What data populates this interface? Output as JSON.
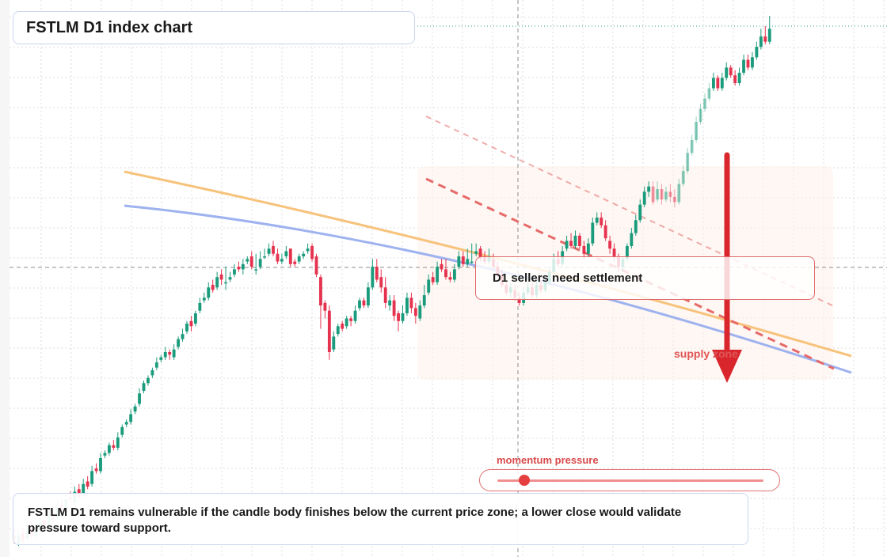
{
  "title": "FSTLM D1 index chart",
  "callout": "D1 sellers need settlement",
  "zone_label": "supply zone",
  "momentum_label": "momentum pressure",
  "momentum_level": 0.1,
  "footer_text": "FSTLM D1 remains vulnerable if the candle body finishes below the current price zone; a lower close would validate pressure toward support.",
  "colors": {
    "bull": "#1a9b7c",
    "bear": "#e5334f",
    "ma_fast": "#f7c37c",
    "ma_slow": "#9db2ef",
    "resistance": "#e66a6a",
    "arrow": "#d9262d",
    "zone_fill": "#fdf1ea",
    "grid": "#dcdcdc"
  },
  "chart_data": {
    "type": "candlestick",
    "title": "FSTLM D1 index chart",
    "grid": true,
    "crosshair": true,
    "candles": [
      [
        99,
        98,
        102,
        96
      ],
      [
        96,
        99,
        101,
        95
      ],
      [
        100,
        97,
        102,
        96
      ],
      [
        98,
        101,
        103,
        97
      ],
      [
        103,
        99,
        104,
        98
      ],
      [
        99,
        102,
        104,
        98
      ],
      [
        101,
        104,
        106,
        100
      ],
      [
        105,
        103,
        107,
        102
      ],
      [
        103,
        107,
        109,
        102
      ],
      [
        108,
        105,
        110,
        104
      ],
      [
        106,
        110,
        112,
        105
      ],
      [
        111,
        109,
        113,
        108
      ],
      [
        109,
        113,
        115,
        108
      ],
      [
        114,
        113,
        116,
        112
      ],
      [
        112,
        116,
        118,
        111
      ],
      [
        117,
        114,
        119,
        113
      ],
      [
        115,
        119,
        121,
        114
      ],
      [
        120,
        118,
        122,
        117
      ],
      [
        119,
        124,
        126,
        118
      ],
      [
        125,
        124,
        127,
        123
      ],
      [
        124,
        129,
        131,
        123
      ],
      [
        130,
        131,
        132,
        129
      ],
      [
        131,
        134,
        135,
        130
      ],
      [
        134,
        133,
        136,
        132
      ],
      [
        133,
        137,
        139,
        132
      ],
      [
        138,
        141,
        142,
        137
      ],
      [
        142,
        143,
        144,
        141
      ],
      [
        143,
        146,
        148,
        142
      ],
      [
        147,
        149,
        150,
        146
      ],
      [
        150,
        154,
        156,
        149
      ],
      [
        155,
        158,
        159,
        154
      ],
      [
        158,
        160,
        161,
        157
      ],
      [
        161,
        163,
        164,
        160
      ],
      [
        164,
        166,
        168,
        163
      ],
      [
        167,
        168,
        169,
        166
      ],
      [
        168,
        170,
        172,
        167
      ],
      [
        170,
        169,
        171,
        167
      ],
      [
        168,
        171,
        173,
        167
      ],
      [
        172,
        175,
        176,
        171
      ],
      [
        175,
        177,
        179,
        174
      ],
      [
        178,
        181,
        182,
        177
      ],
      [
        182,
        180,
        184,
        178
      ],
      [
        181,
        185,
        186,
        180
      ],
      [
        186,
        189,
        191,
        185
      ],
      [
        190,
        191,
        193,
        189
      ],
      [
        191,
        195,
        197,
        190
      ],
      [
        196,
        194,
        198,
        193
      ],
      [
        195,
        199,
        201,
        194
      ],
      [
        200,
        198,
        202,
        196
      ],
      [
        197,
        197,
        203,
        194
      ],
      [
        198,
        199,
        201,
        197
      ],
      [
        200,
        202,
        204,
        199
      ],
      [
        203,
        202,
        205,
        201
      ],
      [
        202,
        204,
        206,
        200
      ],
      [
        205,
        206,
        207,
        204
      ],
      [
        207,
        203,
        209,
        202
      ],
      [
        202,
        202,
        208,
        200
      ],
      [
        203,
        206,
        209,
        202
      ],
      [
        207,
        207,
        210,
        206
      ],
      [
        208,
        210,
        212,
        207
      ],
      [
        211,
        208,
        213,
        207
      ],
      [
        208,
        205,
        210,
        204
      ],
      [
        205,
        206,
        208,
        204
      ],
      [
        207,
        209,
        211,
        206
      ],
      [
        210,
        204,
        210,
        203
      ],
      [
        205,
        204,
        206,
        203
      ],
      [
        205,
        207,
        208,
        204
      ],
      [
        207,
        208,
        209,
        206
      ],
      [
        209,
        210,
        212,
        208
      ],
      [
        211,
        206,
        212,
        205
      ],
      [
        207,
        200,
        208,
        199
      ],
      [
        199,
        188,
        200,
        179
      ],
      [
        189,
        186,
        190,
        183
      ],
      [
        186,
        170,
        188,
        167
      ],
      [
        171,
        176,
        178,
        170
      ],
      [
        177,
        180,
        181,
        176
      ],
      [
        181,
        179,
        182,
        178
      ],
      [
        180,
        183,
        184,
        179
      ],
      [
        183,
        182,
        184,
        180
      ],
      [
        182,
        186,
        188,
        181
      ],
      [
        187,
        190,
        191,
        186
      ],
      [
        190,
        188,
        191,
        187
      ],
      [
        188,
        195,
        197,
        187
      ],
      [
        195,
        203,
        206,
        194
      ],
      [
        203,
        198,
        206,
        197
      ],
      [
        199,
        195,
        202,
        193
      ],
      [
        195,
        189,
        199,
        187
      ],
      [
        188,
        190,
        192,
        186
      ],
      [
        190,
        184,
        192,
        182
      ],
      [
        185,
        182,
        186,
        178
      ],
      [
        182,
        185,
        188,
        181
      ],
      [
        185,
        191,
        193,
        184
      ],
      [
        191,
        187,
        193,
        185
      ],
      [
        187,
        184,
        189,
        181
      ],
      [
        183,
        188,
        190,
        182
      ],
      [
        188,
        192,
        196,
        187
      ],
      [
        193,
        198,
        200,
        192
      ],
      [
        199,
        197,
        201,
        196
      ],
      [
        197,
        203,
        205,
        196
      ],
      [
        204,
        202,
        206,
        201
      ],
      [
        202,
        199,
        206,
        198
      ],
      [
        199,
        198,
        201,
        197
      ],
      [
        198,
        202,
        204,
        197
      ],
      [
        203,
        207,
        209,
        202
      ],
      [
        207,
        204,
        209,
        203
      ],
      [
        204,
        206,
        210,
        203
      ],
      [
        205,
        205,
        212,
        204
      ],
      [
        208,
        209,
        212,
        207
      ],
      [
        210,
        206,
        211,
        205
      ],
      [
        207,
        205,
        209,
        204
      ],
      [
        205,
        207,
        210,
        204
      ],
      [
        206,
        203,
        208,
        202
      ],
      [
        203,
        200,
        205,
        199
      ],
      [
        200,
        196,
        202,
        195
      ],
      [
        196,
        193,
        198,
        192
      ],
      [
        193,
        195,
        197,
        191
      ],
      [
        194,
        191,
        196,
        190
      ],
      [
        191,
        189,
        193,
        188
      ],
      [
        189,
        193,
        195,
        188
      ],
      [
        193,
        195,
        197,
        192
      ],
      [
        195,
        192,
        197,
        191
      ],
      [
        192,
        196,
        198,
        191
      ],
      [
        196,
        194,
        198,
        193
      ],
      [
        194,
        197,
        200,
        193
      ],
      [
        197,
        201,
        203,
        196
      ],
      [
        201,
        206,
        208,
        200
      ],
      [
        206,
        204,
        209,
        203
      ],
      [
        204,
        209,
        211,
        203
      ],
      [
        210,
        213,
        215,
        209
      ],
      [
        213,
        211,
        216,
        210
      ],
      [
        211,
        215,
        217,
        210
      ],
      [
        215,
        211,
        216,
        210
      ],
      [
        211,
        208,
        213,
        206
      ],
      [
        208,
        212,
        214,
        207
      ],
      [
        212,
        220,
        222,
        211
      ],
      [
        220,
        222,
        224,
        219
      ],
      [
        222,
        219,
        224,
        218
      ],
      [
        219,
        214,
        221,
        213
      ],
      [
        213,
        210,
        215,
        208
      ],
      [
        210,
        207,
        212,
        205
      ],
      [
        207,
        203,
        208,
        201
      ],
      [
        203,
        206,
        207,
        201
      ],
      [
        206,
        211,
        212,
        205
      ],
      [
        211,
        216,
        218,
        210
      ],
      [
        216,
        221,
        223,
        215
      ],
      [
        221,
        227,
        229,
        220
      ],
      [
        227,
        232,
        234,
        226
      ],
      [
        232,
        234,
        236,
        230
      ],
      [
        234,
        228,
        236,
        227
      ],
      [
        229,
        233,
        236,
        228
      ],
      [
        233,
        229,
        235,
        227
      ],
      [
        229,
        232,
        234,
        228
      ],
      [
        232,
        230,
        235,
        228
      ],
      [
        230,
        228,
        233,
        226
      ],
      [
        228,
        235,
        237,
        227
      ],
      [
        235,
        240,
        242,
        234
      ],
      [
        240,
        247,
        249,
        239
      ],
      [
        247,
        252,
        254,
        246
      ],
      [
        252,
        259,
        261,
        251
      ],
      [
        259,
        264,
        266,
        258
      ],
      [
        264,
        268,
        270,
        263
      ],
      [
        268,
        272,
        274,
        267
      ],
      [
        272,
        276,
        278,
        271
      ],
      [
        276,
        272,
        277,
        271
      ],
      [
        272,
        276,
        278,
        271
      ],
      [
        276,
        280,
        282,
        275
      ],
      [
        280,
        277,
        281,
        276
      ],
      [
        277,
        274,
        279,
        273
      ],
      [
        274,
        278,
        280,
        273
      ],
      [
        278,
        283,
        285,
        277
      ],
      [
        283,
        280,
        285,
        279
      ],
      [
        280,
        284,
        286,
        279
      ],
      [
        284,
        288,
        290,
        283
      ],
      [
        288,
        292,
        295,
        287
      ],
      [
        292,
        290,
        296,
        289
      ],
      [
        290,
        295,
        300,
        289
      ]
    ]
  }
}
